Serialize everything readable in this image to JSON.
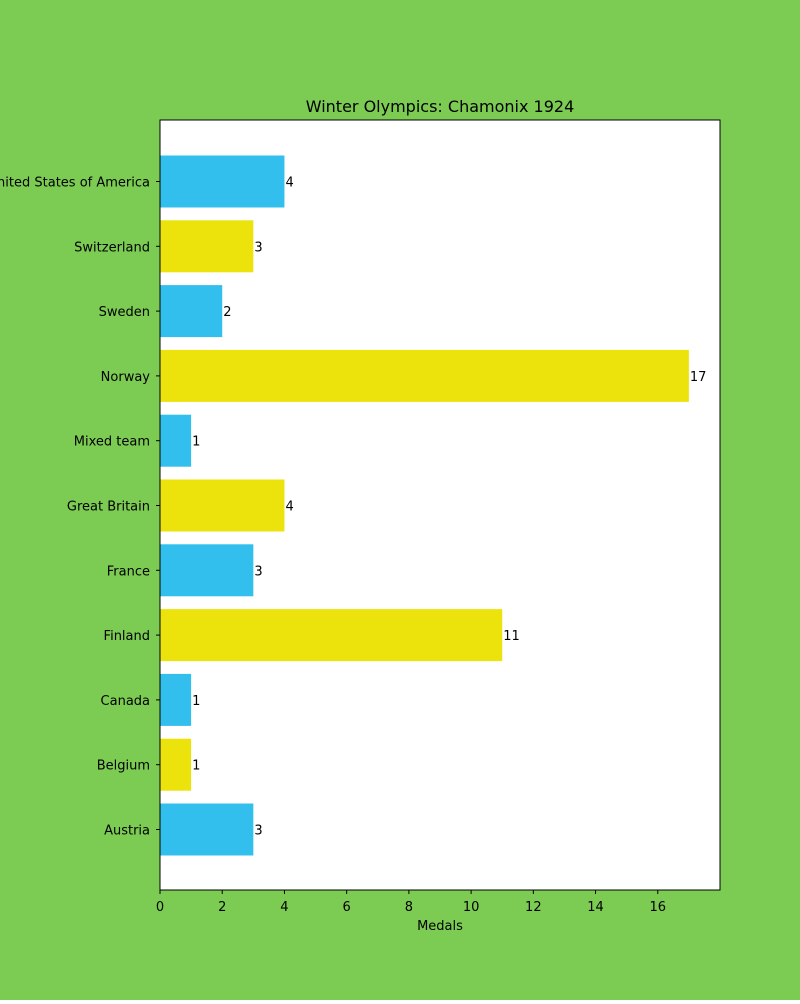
{
  "chart_data": {
    "type": "bar",
    "orientation": "horizontal",
    "title": "Winter Olympics: Chamonix 1924",
    "xlabel": "Medals",
    "ylabel": "",
    "categories": [
      "Austria",
      "Belgium",
      "Canada",
      "Finland",
      "France",
      "Great Britain",
      "Mixed team",
      "Norway",
      "Sweden",
      "Switzerland",
      "United States of America"
    ],
    "values": [
      3,
      1,
      1,
      11,
      3,
      4,
      1,
      17,
      2,
      3,
      4
    ],
    "xlim": [
      0,
      18
    ],
    "xticks": [
      0,
      2,
      4,
      6,
      8,
      10,
      12,
      14,
      16
    ],
    "grid": false,
    "legend": "none",
    "colors": {
      "background": "#7ccc54",
      "plot_area": "#ffffff",
      "bars": [
        "#33bfee",
        "#ede30c"
      ],
      "text": "#000000"
    }
  }
}
